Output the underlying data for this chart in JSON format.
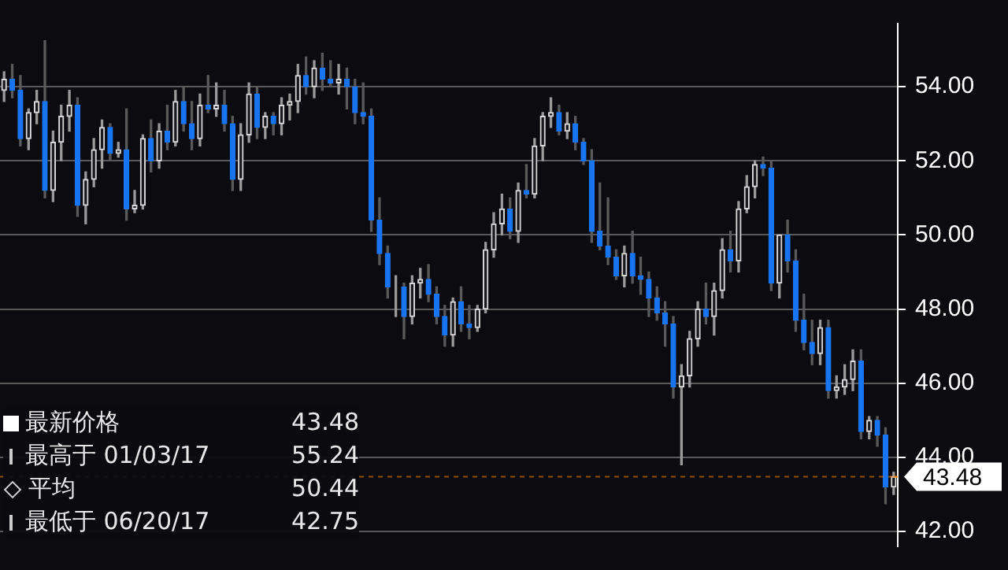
{
  "chart_data": {
    "type": "candlestick",
    "categories": [
      null,
      null,
      null,
      null,
      null,
      null,
      null,
      null,
      null,
      null,
      null,
      null,
      null,
      null,
      null,
      null,
      null,
      null,
      null,
      null,
      null,
      null,
      null,
      null,
      null,
      null,
      null,
      null,
      null,
      null,
      null,
      null,
      null,
      null,
      null,
      null,
      null,
      null,
      null,
      null,
      null,
      null,
      null,
      null,
      null,
      null,
      null,
      null,
      null,
      null,
      null,
      null,
      null,
      null,
      null,
      null,
      null,
      null,
      null,
      null,
      null,
      null,
      null,
      null,
      null,
      null,
      null,
      null,
      null,
      null,
      null,
      null,
      null,
      null,
      null,
      null,
      null,
      null,
      null,
      null,
      null,
      null,
      null,
      null,
      null,
      null,
      null,
      null,
      null,
      null,
      null,
      null,
      null,
      null,
      null,
      null,
      null,
      null,
      null,
      null,
      null,
      null,
      null,
      null,
      null,
      null,
      null,
      null,
      null,
      null
    ],
    "ohlc": [
      [
        53.9,
        54.4,
        53.6,
        54.2
      ],
      [
        54.2,
        54.6,
        53.7,
        53.9
      ],
      [
        53.9,
        54.3,
        52.4,
        52.6
      ],
      [
        52.6,
        53.4,
        52.3,
        53.3
      ],
      [
        53.3,
        53.9,
        53.0,
        53.6
      ],
      [
        53.6,
        55.24,
        51.0,
        51.2
      ],
      [
        51.2,
        52.8,
        50.9,
        52.5
      ],
      [
        52.5,
        53.5,
        52.0,
        53.2
      ],
      [
        53.2,
        53.9,
        52.8,
        53.5
      ],
      [
        53.5,
        53.7,
        50.5,
        50.8
      ],
      [
        50.8,
        51.7,
        50.3,
        51.5
      ],
      [
        51.5,
        52.6,
        51.3,
        52.3
      ],
      [
        52.3,
        53.1,
        51.8,
        52.9
      ],
      [
        52.9,
        53.0,
        52.0,
        52.2
      ],
      [
        52.2,
        52.5,
        52.1,
        52.3
      ],
      [
        52.3,
        53.4,
        50.4,
        50.7
      ],
      [
        50.7,
        51.2,
        50.6,
        50.8
      ],
      [
        50.8,
        52.7,
        50.7,
        52.6
      ],
      [
        52.6,
        53.1,
        51.7,
        52.0
      ],
      [
        52.0,
        53.0,
        51.8,
        52.8
      ],
      [
        52.8,
        53.5,
        52.3,
        52.5
      ],
      [
        52.5,
        53.9,
        52.4,
        53.6
      ],
      [
        53.6,
        54.0,
        52.8,
        53.0
      ],
      [
        53.0,
        53.6,
        52.3,
        52.6
      ],
      [
        52.6,
        53.8,
        52.4,
        53.5
      ],
      [
        53.5,
        54.3,
        53.3,
        53.4
      ],
      [
        53.4,
        54.1,
        53.2,
        53.5
      ],
      [
        53.5,
        53.9,
        52.8,
        53.0
      ],
      [
        53.0,
        53.2,
        51.2,
        51.5
      ],
      [
        51.5,
        53.0,
        51.2,
        52.7
      ],
      [
        52.7,
        54.1,
        52.5,
        53.8
      ],
      [
        53.8,
        54.0,
        52.6,
        52.9
      ],
      [
        52.9,
        53.3,
        52.6,
        53.2
      ],
      [
        53.2,
        53.3,
        52.7,
        53.0
      ],
      [
        53.0,
        53.7,
        52.7,
        53.5
      ],
      [
        53.5,
        53.8,
        53.1,
        53.6
      ],
      [
        53.6,
        54.6,
        53.3,
        54.3
      ],
      [
        54.3,
        54.8,
        53.8,
        54.0
      ],
      [
        54.0,
        54.7,
        53.7,
        54.5
      ],
      [
        54.5,
        54.9,
        53.9,
        54.2
      ],
      [
        54.2,
        54.7,
        54.0,
        54.1
      ],
      [
        54.1,
        54.6,
        53.8,
        54.2
      ],
      [
        54.2,
        54.5,
        53.4,
        54.0
      ],
      [
        54.0,
        54.2,
        53.0,
        53.3
      ],
      [
        53.3,
        54.1,
        53.0,
        53.2
      ],
      [
        53.2,
        53.4,
        50.1,
        50.4
      ],
      [
        50.4,
        51.0,
        49.2,
        49.5
      ],
      [
        49.5,
        49.7,
        48.3,
        48.6
      ],
      [
        48.6,
        48.9,
        47.8,
        48.6
      ],
      [
        48.6,
        48.7,
        47.2,
        47.8
      ],
      [
        47.8,
        48.9,
        47.6,
        48.7
      ],
      [
        48.7,
        49.1,
        48.3,
        48.8
      ],
      [
        48.8,
        49.2,
        48.2,
        48.4
      ],
      [
        48.4,
        48.6,
        47.6,
        47.8
      ],
      [
        47.8,
        48.1,
        47.0,
        47.3
      ],
      [
        47.3,
        48.3,
        47.0,
        48.2
      ],
      [
        48.2,
        48.6,
        47.4,
        47.6
      ],
      [
        47.6,
        48.1,
        47.2,
        47.5
      ],
      [
        47.5,
        48.1,
        47.4,
        48.0
      ],
      [
        48.0,
        49.8,
        47.9,
        49.6
      ],
      [
        49.6,
        50.6,
        49.4,
        50.3
      ],
      [
        50.3,
        51.1,
        50.0,
        50.7
      ],
      [
        50.7,
        51.0,
        49.9,
        50.1
      ],
      [
        50.1,
        51.4,
        49.8,
        51.2
      ],
      [
        51.2,
        51.9,
        51.0,
        51.1
      ],
      [
        51.1,
        52.6,
        51.0,
        52.4
      ],
      [
        52.4,
        53.3,
        52.0,
        53.2
      ],
      [
        53.2,
        53.7,
        52.9,
        53.3
      ],
      [
        53.3,
        53.5,
        52.7,
        52.8
      ],
      [
        52.8,
        53.3,
        52.6,
        53.0
      ],
      [
        53.0,
        53.2,
        52.3,
        52.5
      ],
      [
        52.5,
        52.6,
        51.9,
        52.0
      ],
      [
        52.0,
        52.3,
        49.8,
        50.1
      ],
      [
        50.1,
        51.4,
        49.6,
        49.7
      ],
      [
        49.7,
        51.0,
        49.2,
        49.4
      ],
      [
        49.4,
        49.6,
        48.8,
        48.9
      ],
      [
        48.9,
        49.7,
        48.6,
        49.5
      ],
      [
        49.5,
        50.1,
        48.7,
        48.9
      ],
      [
        48.9,
        49.4,
        48.4,
        48.8
      ],
      [
        48.8,
        49.0,
        47.8,
        48.3
      ],
      [
        48.3,
        48.6,
        47.7,
        47.9
      ],
      [
        47.9,
        48.2,
        47.0,
        47.6
      ],
      [
        47.6,
        47.8,
        45.6,
        45.9
      ],
      [
        45.9,
        46.5,
        43.8,
        46.2
      ],
      [
        46.2,
        47.4,
        45.9,
        47.2
      ],
      [
        47.2,
        48.2,
        47.0,
        48.0
      ],
      [
        48.0,
        48.7,
        47.6,
        47.8
      ],
      [
        47.8,
        48.7,
        47.3,
        48.5
      ],
      [
        48.5,
        49.9,
        48.3,
        49.6
      ],
      [
        49.6,
        50.1,
        49.0,
        49.3
      ],
      [
        49.3,
        50.9,
        49.0,
        50.7
      ],
      [
        50.7,
        51.6,
        50.6,
        51.3
      ],
      [
        51.3,
        52.0,
        51.0,
        51.9
      ],
      [
        51.9,
        52.1,
        51.6,
        51.8
      ],
      [
        51.8,
        52.0,
        48.5,
        48.7
      ],
      [
        48.7,
        50.0,
        48.3,
        50.0
      ],
      [
        50.0,
        50.4,
        49.0,
        49.3
      ],
      [
        49.3,
        49.6,
        47.4,
        47.7
      ],
      [
        47.7,
        48.4,
        46.9,
        47.1
      ],
      [
        47.1,
        47.7,
        46.5,
        46.8
      ],
      [
        46.8,
        47.7,
        46.5,
        47.5
      ],
      [
        47.5,
        47.7,
        45.6,
        45.8
      ],
      [
        45.8,
        46.2,
        45.6,
        45.9
      ],
      [
        45.9,
        46.5,
        45.7,
        46.1
      ],
      [
        46.1,
        46.9,
        45.8,
        46.6
      ],
      [
        46.6,
        46.9,
        44.5,
        44.7
      ],
      [
        44.7,
        45.1,
        44.5,
        45.0
      ],
      [
        45.0,
        45.1,
        44.3,
        44.6
      ],
      [
        44.6,
        44.8,
        42.75,
        43.2
      ],
      [
        43.2,
        43.6,
        43.0,
        43.48
      ]
    ],
    "ylim": [
      41.6,
      55.7
    ],
    "yticks": [
      {
        "value": 42,
        "label": "42.00"
      },
      {
        "value": 44,
        "label": "44.00"
      },
      {
        "value": 46,
        "label": "46.00"
      },
      {
        "value": 48,
        "label": "48.00"
      },
      {
        "value": 50,
        "label": "50.00"
      },
      {
        "value": 52,
        "label": "52.00"
      },
      {
        "value": 54,
        "label": "54.00"
      }
    ],
    "grid": "y",
    "tick_labels": "y",
    "ref_lines": [
      {
        "axis": "y",
        "value": 43.48,
        "label": "43.48",
        "color": "#ff8c00"
      }
    ],
    "annotations": [
      "最新价格",
      "43.48",
      "最高于 01/03/17",
      "55.24",
      "平均",
      "50.44",
      "最低于 06/20/17",
      "42.75"
    ]
  }
}
